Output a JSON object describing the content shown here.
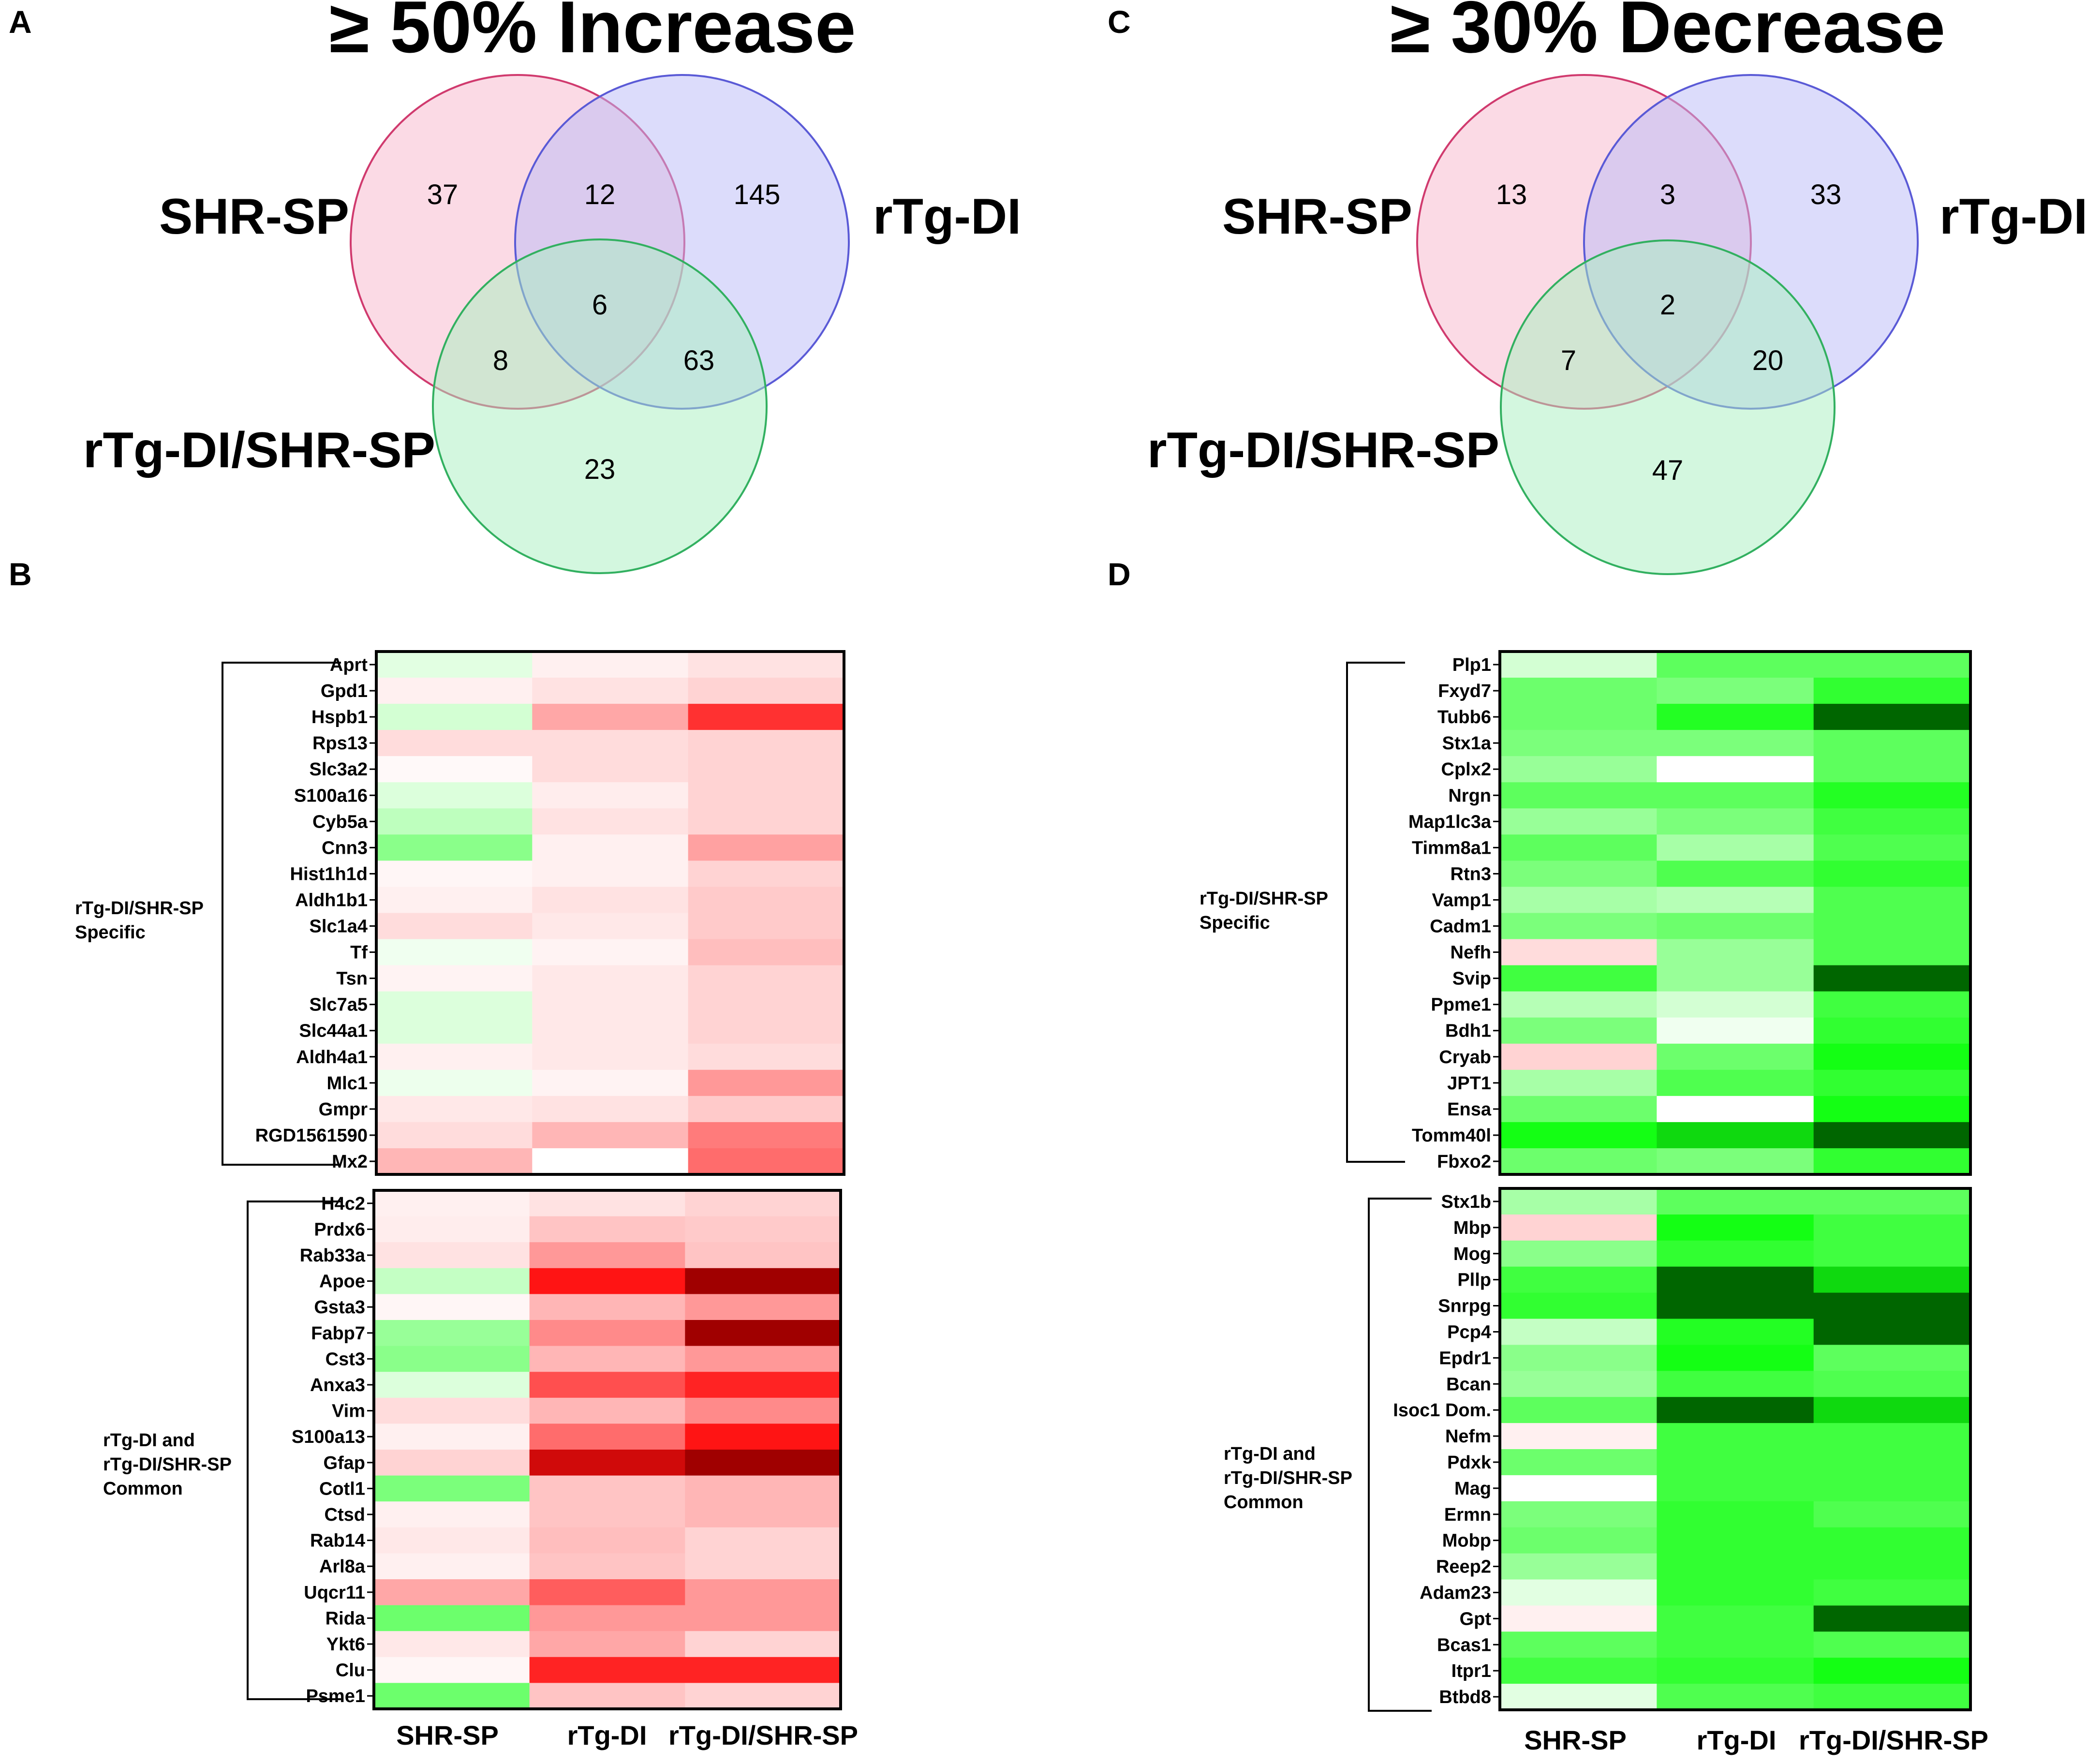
{
  "panels": {
    "a": {
      "letter": "A",
      "title": "≥ 50% Increase"
    },
    "b": {
      "letter": "B"
    },
    "c": {
      "letter": "C",
      "title": "≥ 30% Decrease"
    },
    "d": {
      "letter": "D"
    }
  },
  "colors": {
    "circle_shr_fill": "#f7b6cc",
    "circle_shr_stroke": "#d03a6e",
    "circle_rtg_fill": "#b9b9f7",
    "circle_rtg_stroke": "#5a5ad6",
    "circle_both_fill": "#a8efc0",
    "circle_both_stroke": "#32b060",
    "heat_red": "#a00000",
    "heat_green": "#006600",
    "heat_zero": "#ffffff"
  },
  "chart_data": [
    {
      "type": "venn",
      "panel": "A",
      "title": "≥ 50% Increase",
      "sets": [
        "SHR-SP",
        "rTg-DI",
        "rTg-DI/SHR-SP"
      ],
      "regions": {
        "shr_only": 37,
        "rtg_only": 145,
        "both_only": 23,
        "shr_rtg": 12,
        "shr_both": 8,
        "rtg_both": 63,
        "all": 6
      }
    },
    {
      "type": "venn",
      "panel": "C",
      "title": "≥ 30% Decrease",
      "sets": [
        "SHR-SP",
        "rTg-DI",
        "rTg-DI/SHR-SP"
      ],
      "regions": {
        "shr_only": 13,
        "rtg_only": 33,
        "both_only": 47,
        "shr_rtg": 3,
        "shr_both": 7,
        "rtg_both": 20,
        "all": 2
      }
    },
    {
      "type": "heatmap",
      "panel": "B",
      "direction": "increase",
      "columns": [
        "SHR-SP",
        "rTg-DI",
        "rTg-DI/SHR-SP"
      ],
      "value_scale": "signed intensity (-1 strongest decrease/green … +1 strongest increase/red), estimated from color",
      "groups": [
        {
          "label": "rTg-DI/SHR-SP Specific",
          "rows": [
            {
              "gene": "Aprt",
              "values": [
                -0.1,
                0.05,
                0.1
              ]
            },
            {
              "gene": "Gpd1",
              "values": [
                0.05,
                0.1,
                0.15
              ]
            },
            {
              "gene": "Hspb1",
              "values": [
                -0.15,
                0.3,
                0.7
              ]
            },
            {
              "gene": "Rps13",
              "values": [
                0.12,
                0.12,
                0.15
              ]
            },
            {
              "gene": "Slc3a2",
              "values": [
                0.02,
                0.12,
                0.15
              ]
            },
            {
              "gene": "S100a16",
              "values": [
                -0.12,
                0.06,
                0.15
              ]
            },
            {
              "gene": "Cyb5a",
              "values": [
                -0.22,
                0.1,
                0.15
              ]
            },
            {
              "gene": "Cnn3",
              "values": [
                -0.4,
                0.05,
                0.32
              ]
            },
            {
              "gene": "Hist1h1d",
              "values": [
                0.03,
                0.05,
                0.15
              ]
            },
            {
              "gene": "Aldh1b1",
              "values": [
                0.05,
                0.1,
                0.18
              ]
            },
            {
              "gene": "Slc1a4",
              "values": [
                0.12,
                0.08,
                0.18
              ]
            },
            {
              "gene": "Tf",
              "values": [
                -0.05,
                0.04,
                0.22
              ]
            },
            {
              "gene": "Tsn",
              "values": [
                0.04,
                0.08,
                0.15
              ]
            },
            {
              "gene": "Slc7a5",
              "values": [
                -0.12,
                0.08,
                0.15
              ]
            },
            {
              "gene": "Slc44a1",
              "values": [
                -0.12,
                0.08,
                0.15
              ]
            },
            {
              "gene": "Aldh4a1",
              "values": [
                0.05,
                0.08,
                0.12
              ]
            },
            {
              "gene": "Mlc1",
              "values": [
                -0.06,
                0.04,
                0.35
              ]
            },
            {
              "gene": "Gmpr",
              "values": [
                0.08,
                0.1,
                0.18
              ]
            },
            {
              "gene": "RGD1561590",
              "values": [
                0.12,
                0.25,
                0.45
              ]
            },
            {
              "gene": "Mx2",
              "values": [
                0.25,
                0.0,
                0.5
              ]
            }
          ]
        },
        {
          "label": "rTg-DI and rTg-DI/SHR-SP Common",
          "rows": [
            {
              "gene": "H4c2",
              "values": [
                0.05,
                0.1,
                0.15
              ]
            },
            {
              "gene": "Prdx6",
              "values": [
                0.06,
                0.2,
                0.18
              ]
            },
            {
              "gene": "Rab33a",
              "values": [
                0.1,
                0.35,
                0.2
              ]
            },
            {
              "gene": "Apoe",
              "values": [
                -0.2,
                0.8,
                1.0
              ]
            },
            {
              "gene": "Gsta3",
              "values": [
                0.03,
                0.25,
                0.35
              ]
            },
            {
              "gene": "Fabp7",
              "values": [
                -0.35,
                0.4,
                1.0
              ]
            },
            {
              "gene": "Cst3",
              "values": [
                -0.4,
                0.25,
                0.35
              ]
            },
            {
              "gene": "Anxa3",
              "values": [
                -0.12,
                0.6,
                0.75
              ]
            },
            {
              "gene": "Vim",
              "values": [
                0.12,
                0.25,
                0.4
              ]
            },
            {
              "gene": "S100a13",
              "values": [
                0.05,
                0.5,
                0.8
              ]
            },
            {
              "gene": "Gfap",
              "values": [
                0.15,
                0.9,
                1.0
              ]
            },
            {
              "gene": "Cotl1",
              "values": [
                -0.45,
                0.2,
                0.25
              ]
            },
            {
              "gene": "Ctsd",
              "values": [
                0.05,
                0.2,
                0.25
              ]
            },
            {
              "gene": "Rab14",
              "values": [
                0.08,
                0.22,
                0.15
              ]
            },
            {
              "gene": "Arl8a",
              "values": [
                0.05,
                0.2,
                0.15
              ]
            },
            {
              "gene": "Uqcr11",
              "values": [
                0.3,
                0.55,
                0.35
              ]
            },
            {
              "gene": "Rida",
              "values": [
                -0.5,
                0.35,
                0.35
              ]
            },
            {
              "gene": "Ykt6",
              "values": [
                0.08,
                0.3,
                0.15
              ]
            },
            {
              "gene": "Clu",
              "values": [
                0.03,
                0.75,
                0.75
              ]
            },
            {
              "gene": "Psme1",
              "values": [
                -0.5,
                0.2,
                0.15
              ]
            }
          ]
        }
      ]
    },
    {
      "type": "heatmap",
      "panel": "D",
      "direction": "decrease",
      "columns": [
        "SHR-SP",
        "rTg-DI",
        "rTg-DI/SHR-SP"
      ],
      "value_scale": "signed intensity (-1 strongest decrease/green … +1 strongest increase/red), estimated from color",
      "groups": [
        {
          "label": "rTg-DI/SHR-SP Specific",
          "rows": [
            {
              "gene": "Plp1",
              "values": [
                -0.15,
                -0.55,
                -0.55
              ]
            },
            {
              "gene": "Fxyd7",
              "values": [
                -0.5,
                -0.45,
                -0.7
              ]
            },
            {
              "gene": "Tubb6",
              "values": [
                -0.5,
                -0.75,
                -1.0
              ]
            },
            {
              "gene": "Stx1a",
              "values": [
                -0.45,
                -0.45,
                -0.55
              ]
            },
            {
              "gene": "Cplx2",
              "values": [
                -0.35,
                0.0,
                -0.55
              ]
            },
            {
              "gene": "Nrgn",
              "values": [
                -0.55,
                -0.55,
                -0.75
              ]
            },
            {
              "gene": "Map1lc3a",
              "values": [
                -0.35,
                -0.45,
                -0.65
              ]
            },
            {
              "gene": "Timm8a1",
              "values": [
                -0.55,
                -0.3,
                -0.6
              ]
            },
            {
              "gene": "Rtn3",
              "values": [
                -0.45,
                -0.6,
                -0.7
              ]
            },
            {
              "gene": "Vamp1",
              "values": [
                -0.3,
                -0.25,
                -0.6
              ]
            },
            {
              "gene": "Cadm1",
              "values": [
                -0.45,
                -0.5,
                -0.6
              ]
            },
            {
              "gene": "Nefh",
              "values": [
                0.12,
                -0.35,
                -0.6
              ]
            },
            {
              "gene": "Svip",
              "values": [
                -0.65,
                -0.35,
                -1.0
              ]
            },
            {
              "gene": "Ppme1",
              "values": [
                -0.25,
                -0.15,
                -0.65
              ]
            },
            {
              "gene": "Bdh1",
              "values": [
                -0.45,
                -0.05,
                -0.7
              ]
            },
            {
              "gene": "Cryab",
              "values": [
                0.15,
                -0.5,
                -0.8
              ]
            },
            {
              "gene": "JPT1",
              "values": [
                -0.3,
                -0.6,
                -0.7
              ]
            },
            {
              "gene": "Ensa",
              "values": [
                -0.5,
                0.0,
                -0.8
              ]
            },
            {
              "gene": "Tomm40l",
              "values": [
                -0.8,
                -0.85,
                -1.0
              ]
            },
            {
              "gene": "Fbxo2",
              "values": [
                -0.5,
                -0.45,
                -0.7
              ]
            }
          ]
        },
        {
          "label": "rTg-DI and rTg-DI/SHR-SP Common",
          "rows": [
            {
              "gene": "Stx1b",
              "values": [
                -0.3,
                -0.55,
                -0.55
              ]
            },
            {
              "gene": "Mbp",
              "values": [
                0.15,
                -0.8,
                -0.65
              ]
            },
            {
              "gene": "Mog",
              "values": [
                -0.4,
                -0.7,
                -0.65
              ]
            },
            {
              "gene": "Pllp",
              "values": [
                -0.65,
                -1.0,
                -0.85
              ]
            },
            {
              "gene": "Snrpg",
              "values": [
                -0.7,
                -1.0,
                -1.0
              ]
            },
            {
              "gene": "Pcp4",
              "values": [
                -0.2,
                -0.75,
                -1.0
              ]
            },
            {
              "gene": "Epdr1",
              "values": [
                -0.4,
                -0.8,
                -0.55
              ]
            },
            {
              "gene": "Bcan",
              "values": [
                -0.35,
                -0.65,
                -0.6
              ]
            },
            {
              "gene": "Isoc1 Dom.",
              "values": [
                -0.55,
                -1.0,
                -0.85
              ]
            },
            {
              "gene": "Nefm",
              "values": [
                0.05,
                -0.65,
                -0.65
              ]
            },
            {
              "gene": "Pdxk",
              "values": [
                -0.5,
                -0.65,
                -0.65
              ]
            },
            {
              "gene": "Mag",
              "values": [
                0.0,
                -0.65,
                -0.65
              ]
            },
            {
              "gene": "Ermn",
              "values": [
                -0.45,
                -0.7,
                -0.6
              ]
            },
            {
              "gene": "Mobp",
              "values": [
                -0.5,
                -0.7,
                -0.7
              ]
            },
            {
              "gene": "Reep2",
              "values": [
                -0.35,
                -0.7,
                -0.7
              ]
            },
            {
              "gene": "Adam23",
              "values": [
                -0.1,
                -0.7,
                -0.65
              ]
            },
            {
              "gene": "Gpt",
              "values": [
                0.05,
                -0.65,
                -1.0
              ]
            },
            {
              "gene": "Bcas1",
              "values": [
                -0.55,
                -0.65,
                -0.6
              ]
            },
            {
              "gene": "Itpr1",
              "values": [
                -0.65,
                -0.7,
                -0.8
              ]
            },
            {
              "gene": "Btbd8",
              "values": [
                -0.1,
                -0.6,
                -0.65
              ]
            }
          ]
        }
      ]
    }
  ]
}
